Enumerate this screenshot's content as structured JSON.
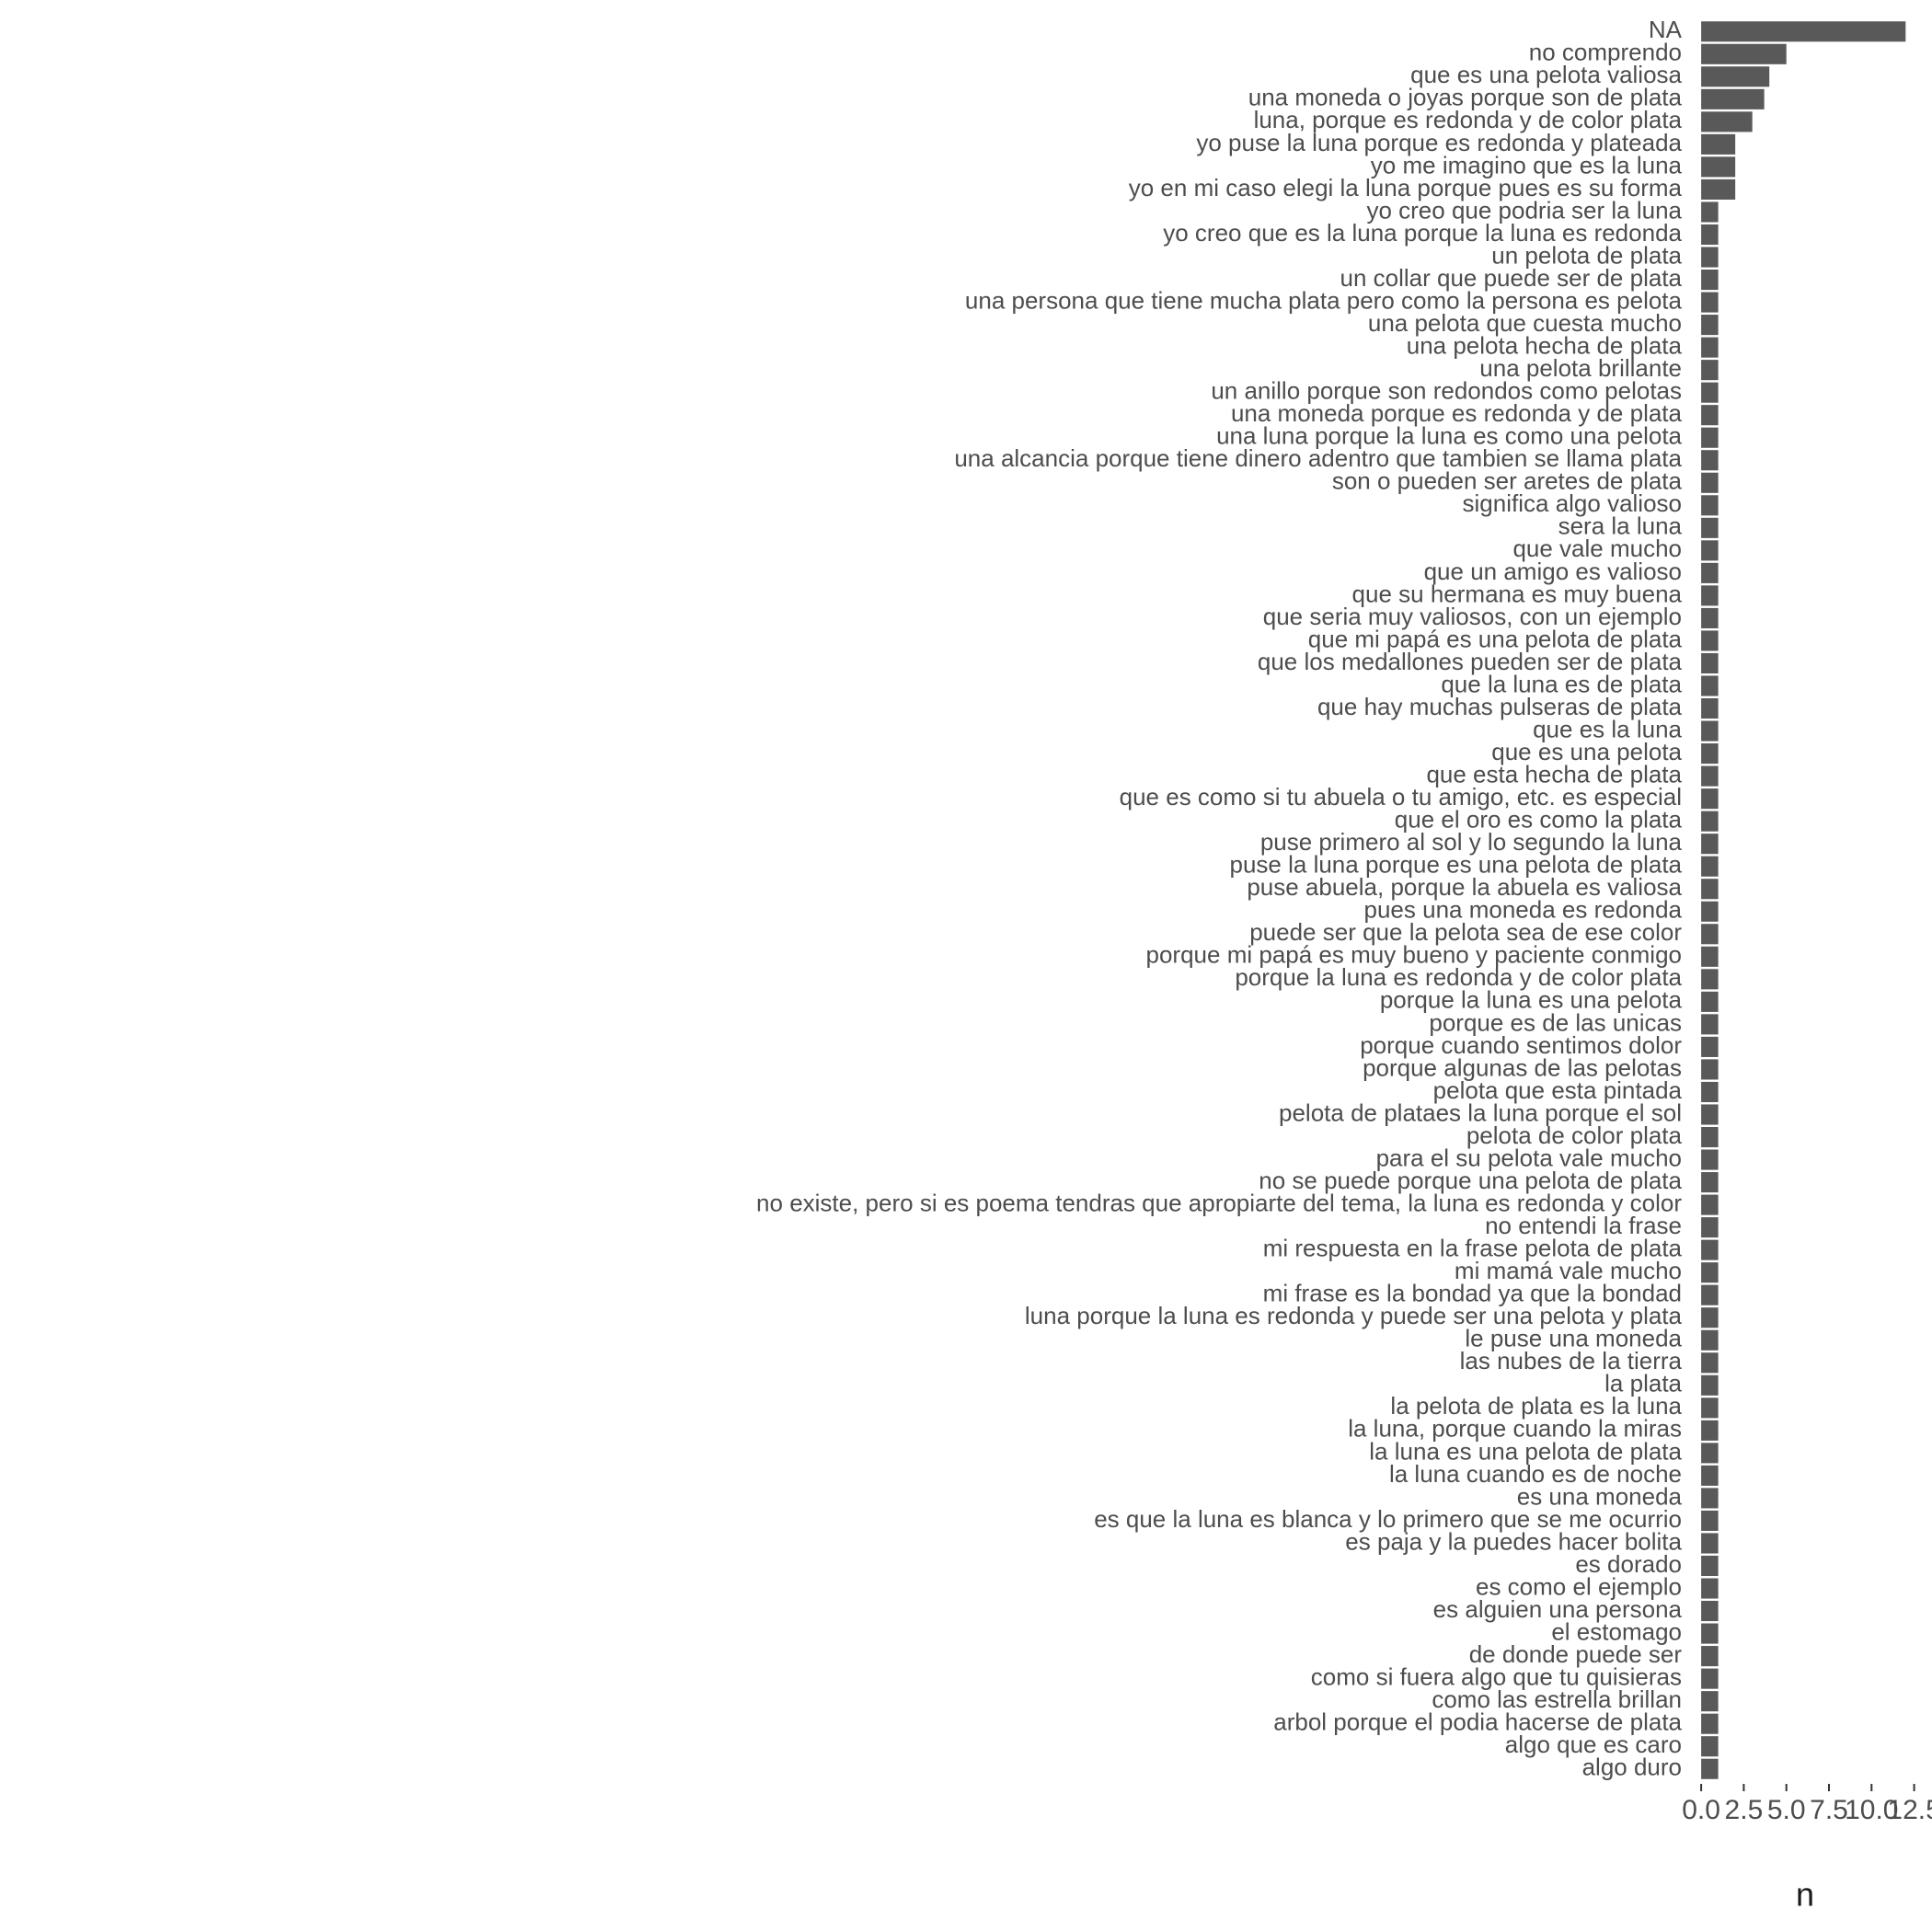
{
  "chart_data": {
    "type": "barh",
    "categories": [
      "NA",
      "no comprendo",
      "que es una pelota valiosa",
      "una moneda o joyas porque son de plata",
      "luna, porque es redonda y de color plata",
      "yo puse la luna porque es redonda y plateada",
      "yo me imagino que es la luna",
      "yo en mi caso elegi la luna porque pues es su forma",
      "yo creo que podria ser la luna",
      "yo creo que es la luna porque la luna es redonda",
      "un pelota de plata",
      "un collar que puede ser de plata",
      "una persona que  tiene mucha plata pero como la persona es pelota",
      "una pelota que cuesta mucho",
      "una pelota hecha de plata",
      "una pelota brillante",
      "un anillo porque son redondos como pelotas",
      "una moneda porque es redonda y de plata",
      "una luna porque la luna es como una pelota",
      "una alcancia porque tiene dinero adentro que tambien se llama plata",
      "son o pueden ser aretes de plata",
      "significa algo valioso",
      "sera la luna",
      "que vale mucho",
      "que un amigo es valioso",
      "que su hermana es muy buena",
      "que seria muy valiosos, con un ejemplo",
      "que mi papá es una pelota de plata",
      "que los medallones pueden ser de plata",
      "que la luna es de plata",
      "que hay muchas pulseras de plata",
      "que es la luna",
      "que es una pelota",
      "que esta hecha de plata",
      "que es como si tu abuela o tu amigo, etc. es especial",
      "que el oro es como la plata",
      "puse primero al sol y lo segundo la luna",
      "puse la luna porque es una pelota de plata",
      "puse abuela, porque la abuela es valiosa",
      "pues una moneda es redonda",
      "puede ser que la pelota sea de ese color",
      "porque mi papá es muy bueno y paciente conmigo",
      "porque la luna es redonda y de color plata",
      "porque la luna es una pelota",
      "porque es de las unicas",
      "porque cuando sentimos dolor",
      "porque algunas de las pelotas",
      "pelota que esta pintada",
      "pelota de plataes la luna porque el sol",
      "pelota de color plata",
      "para el su pelota vale mucho",
      "no se puede porque una pelota de plata",
      "no existe, pero si es poema tendras que apropiarte del tema, la luna es redonda y color",
      "no entendi la frase",
      "mi respuesta en la frase pelota de plata",
      "mi mamá vale mucho",
      "mi frase es la bondad ya que la bondad",
      "luna porque la luna es redonda y puede ser una pelota y plata",
      "le puse una moneda",
      "las nubes de la tierra",
      "la plata",
      "la pelota de plata es la luna",
      "la luna, porque cuando la miras",
      "la luna es una pelota de plata",
      "la luna cuando es de noche",
      "es una moneda",
      "es que la luna es blanca y lo primero que se me ocurrio",
      "es paja y la puedes hacer bolita",
      "es dorado",
      "es como el ejemplo",
      "es alguien  una persona",
      "el estomago",
      "de donde puede ser",
      "como si fuera algo que tu quisieras",
      "como las estrella brillan",
      "arbol porque el podia hacerse de plata",
      "algo que es caro",
      "algo duro"
    ],
    "values": [
      12,
      5,
      4,
      3.7,
      3,
      2,
      2,
      2,
      1,
      1,
      1,
      1,
      1,
      1,
      1,
      1,
      1,
      1,
      1,
      1,
      1,
      1,
      1,
      1,
      1,
      1,
      1,
      1,
      1,
      1,
      1,
      1,
      1,
      1,
      1,
      1,
      1,
      1,
      1,
      1,
      1,
      1,
      1,
      1,
      1,
      1,
      1,
      1,
      1,
      1,
      1,
      1,
      1,
      1,
      1,
      1,
      1,
      1,
      1,
      1,
      1,
      1,
      1,
      1,
      1,
      1,
      1,
      1,
      1,
      1,
      1,
      1,
      1,
      1,
      1,
      1,
      1,
      1
    ],
    "color": "#595959",
    "xlabel": "n",
    "xlim": [
      -0.6,
      12.9
    ],
    "xticks": [
      {
        "value": 0,
        "label": "0.0"
      },
      {
        "value": 2.5,
        "label": "2.5"
      },
      {
        "value": 5,
        "label": "5.0"
      },
      {
        "value": 7.5,
        "label": "7.5"
      },
      {
        "value": 10,
        "label": "10.0"
      },
      {
        "value": 12.5,
        "label": "12.5"
      }
    ],
    "grid": false
  }
}
